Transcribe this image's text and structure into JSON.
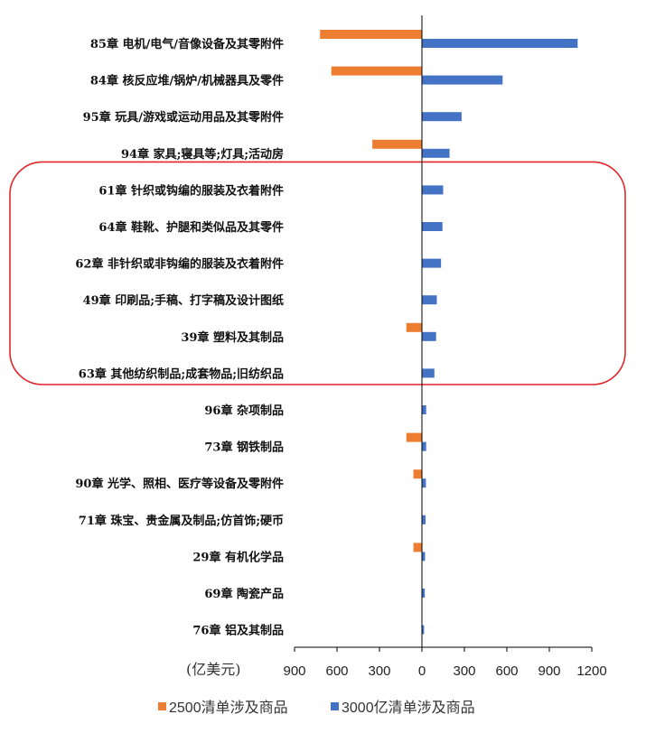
{
  "chart_data": {
    "type": "bar",
    "orientation": "horizontal",
    "categories": [
      "85章 电机/电气/音像设备及其零附件",
      "84章 核反应堆/锅炉/机械器具及零件",
      "95章 玩具/游戏或运动用品及其零附件",
      "94章 家具;寝具等;灯具;活动房",
      "61章 针织或钩编的服装及衣着附件",
      "64章 鞋靴、护腿和类似品及其零件",
      "62章 非针织或非钩编的服装及衣着附件",
      "49章 印刷品;手稿、打字稿及设计图纸",
      "39章 塑料及其制品",
      "63章 其他纺织制品;成套物品;旧纺织品",
      "96章 杂项制品",
      "73章 钢铁制品",
      "90章 光学、照相、医疗等设备及零附件",
      "71章 珠宝、贵金属及制品;仿首饰;硬币",
      "29章 有机化学品",
      "69章 陶瓷产品",
      "76章 铝及其制品"
    ],
    "series": [
      {
        "name": "2500清单涉及商品",
        "color": "#ED7D31",
        "values": [
          -720,
          -640,
          0,
          -350,
          0,
          0,
          0,
          0,
          -110,
          0,
          0,
          -110,
          -60,
          0,
          -60,
          0,
          0
        ]
      },
      {
        "name": "3000亿清单涉及商品",
        "color": "#4472C4",
        "values": [
          1100,
          570,
          280,
          195,
          150,
          145,
          135,
          105,
          100,
          88,
          30,
          30,
          28,
          26,
          22,
          20,
          15
        ]
      }
    ],
    "xlim": [
      -900,
      1200
    ],
    "xticks": [
      -900,
      -600,
      -300,
      0,
      300,
      600,
      900,
      1200
    ],
    "xtick_labels": [
      "900",
      "600",
      "300",
      "0",
      "300",
      "600",
      "900",
      "1200"
    ],
    "unit_label": "(亿美元)",
    "legend_position": "bottom",
    "highlight_box": {
      "from_category_index": 4,
      "to_category_index": 9,
      "color": "#E0262B"
    }
  }
}
